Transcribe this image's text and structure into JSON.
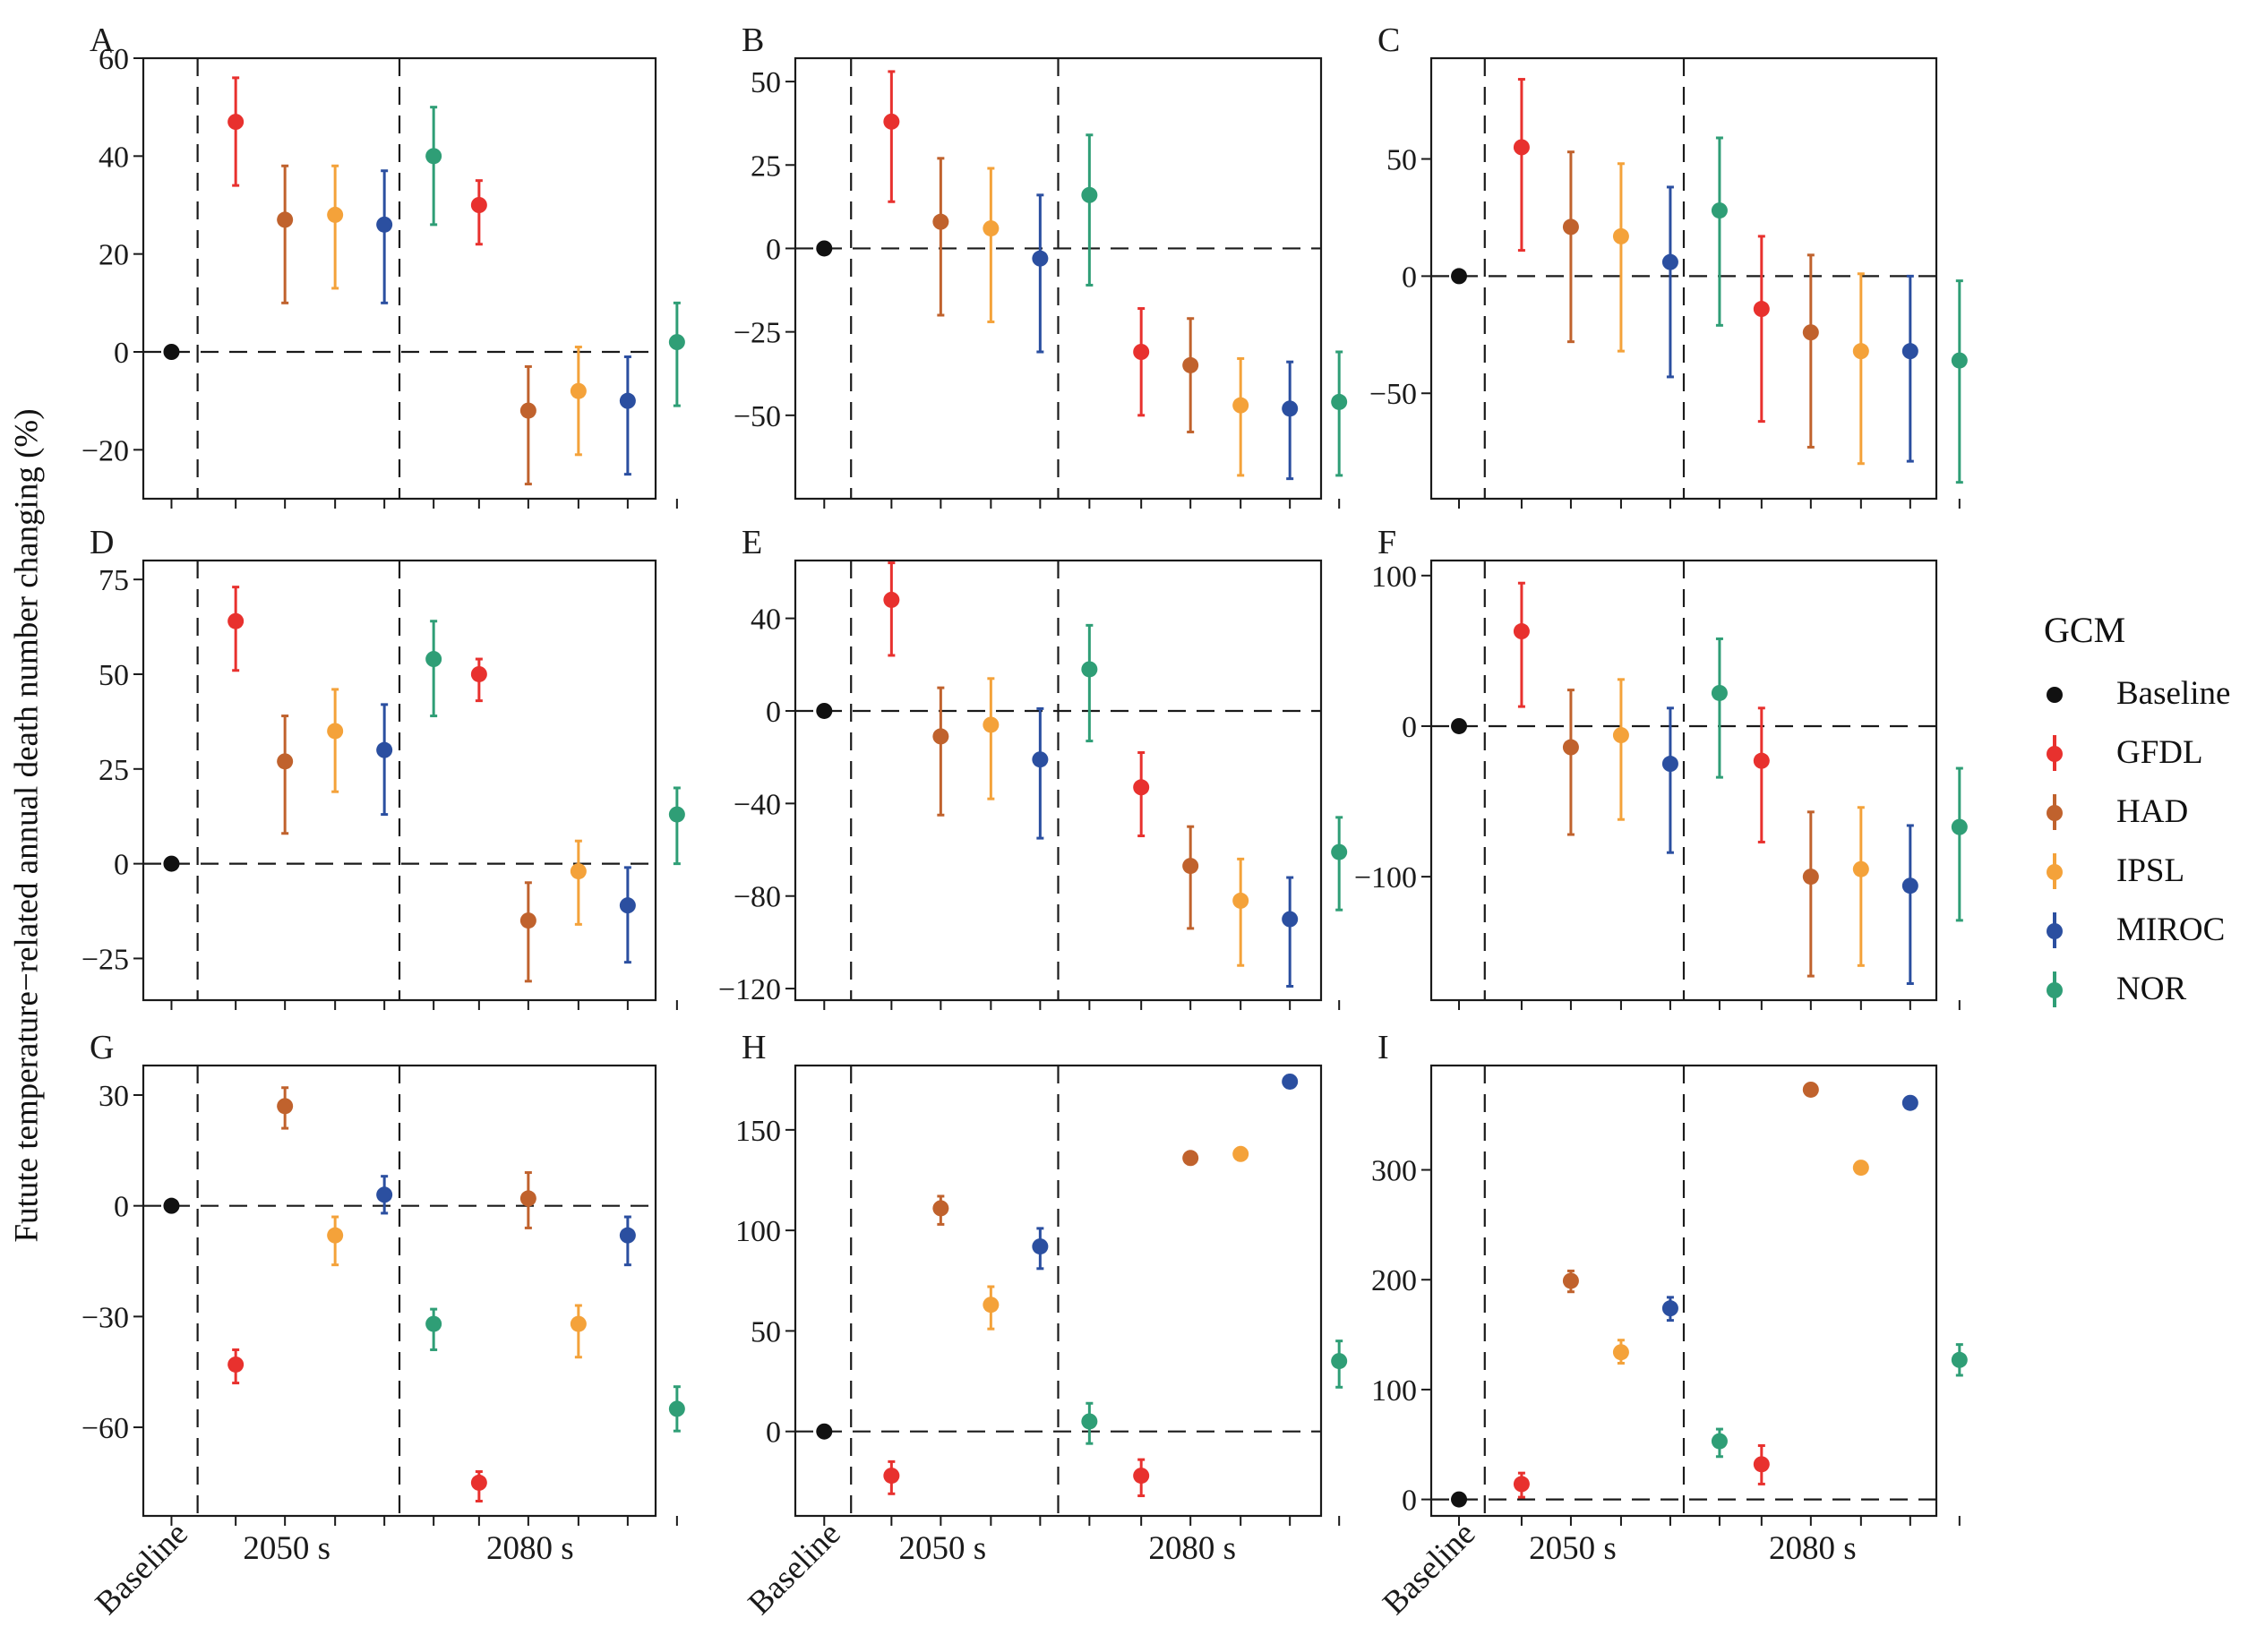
{
  "y_axis_label": "Futute temperature−related annual death number changing (%)",
  "legend": {
    "title": "GCM",
    "items": [
      {
        "label": "Baseline",
        "color": "#111111"
      },
      {
        "label": "GFDL",
        "color": "#e8312e"
      },
      {
        "label": "HAD",
        "color": "#c0622d"
      },
      {
        "label": "IPSL",
        "color": "#f4a23a"
      },
      {
        "label": "MIROC",
        "color": "#2b4fa0"
      },
      {
        "label": "NOR",
        "color": "#2f9e76"
      }
    ]
  },
  "x_tick_labels": [
    "Baseline",
    "2050 s",
    "2080 s"
  ],
  "chart_data": [
    {
      "panel": "A",
      "type": "scatter",
      "ylim": [
        -30,
        60
      ],
      "yticks": [
        -20,
        0,
        20,
        40,
        60
      ],
      "series": [
        {
          "name": "Baseline",
          "period": "Baseline",
          "y": 0,
          "lo": 0,
          "hi": 0
        },
        {
          "name": "GFDL",
          "period": "2050 s",
          "y": 47,
          "lo": 34,
          "hi": 56
        },
        {
          "name": "HAD",
          "period": "2050 s",
          "y": 27,
          "lo": 10,
          "hi": 38
        },
        {
          "name": "IPSL",
          "period": "2050 s",
          "y": 28,
          "lo": 13,
          "hi": 38
        },
        {
          "name": "MIROC",
          "period": "2050 s",
          "y": 26,
          "lo": 10,
          "hi": 37
        },
        {
          "name": "NOR",
          "period": "2050 s",
          "y": 40,
          "lo": 26,
          "hi": 50
        },
        {
          "name": "GFDL",
          "period": "2080 s",
          "y": 30,
          "lo": 22,
          "hi": 35
        },
        {
          "name": "HAD",
          "period": "2080 s",
          "y": -12,
          "lo": -27,
          "hi": -3
        },
        {
          "name": "IPSL",
          "period": "2080 s",
          "y": -8,
          "lo": -21,
          "hi": 1
        },
        {
          "name": "MIROC",
          "period": "2080 s",
          "y": -10,
          "lo": -25,
          "hi": -1
        },
        {
          "name": "NOR",
          "period": "2080 s",
          "y": 2,
          "lo": -11,
          "hi": 10
        }
      ]
    },
    {
      "panel": "B",
      "type": "scatter",
      "ylim": [
        -75,
        57
      ],
      "yticks": [
        -50,
        -25,
        0,
        25,
        50
      ],
      "series": [
        {
          "name": "Baseline",
          "period": "Baseline",
          "y": 0,
          "lo": 0,
          "hi": 0
        },
        {
          "name": "GFDL",
          "period": "2050 s",
          "y": 38,
          "lo": 14,
          "hi": 53
        },
        {
          "name": "HAD",
          "period": "2050 s",
          "y": 8,
          "lo": -20,
          "hi": 27
        },
        {
          "name": "IPSL",
          "period": "2050 s",
          "y": 6,
          "lo": -22,
          "hi": 24
        },
        {
          "name": "MIROC",
          "period": "2050 s",
          "y": -3,
          "lo": -31,
          "hi": 16
        },
        {
          "name": "NOR",
          "period": "2050 s",
          "y": 16,
          "lo": -11,
          "hi": 34
        },
        {
          "name": "GFDL",
          "period": "2080 s",
          "y": -31,
          "lo": -50,
          "hi": -18
        },
        {
          "name": "HAD",
          "period": "2080 s",
          "y": -35,
          "lo": -55,
          "hi": -21
        },
        {
          "name": "IPSL",
          "period": "2080 s",
          "y": -47,
          "lo": -68,
          "hi": -33
        },
        {
          "name": "MIROC",
          "period": "2080 s",
          "y": -48,
          "lo": -69,
          "hi": -34
        },
        {
          "name": "NOR",
          "period": "2080 s",
          "y": -46,
          "lo": -68,
          "hi": -31
        }
      ]
    },
    {
      "panel": "C",
      "type": "scatter",
      "ylim": [
        -95,
        93
      ],
      "yticks": [
        -50,
        0,
        50
      ],
      "series": [
        {
          "name": "Baseline",
          "period": "Baseline",
          "y": 0,
          "lo": 0,
          "hi": 0
        },
        {
          "name": "GFDL",
          "period": "2050 s",
          "y": 55,
          "lo": 11,
          "hi": 84
        },
        {
          "name": "HAD",
          "period": "2050 s",
          "y": 21,
          "lo": -28,
          "hi": 53
        },
        {
          "name": "IPSL",
          "period": "2050 s",
          "y": 17,
          "lo": -32,
          "hi": 48
        },
        {
          "name": "MIROC",
          "period": "2050 s",
          "y": 6,
          "lo": -43,
          "hi": 38
        },
        {
          "name": "NOR",
          "period": "2050 s",
          "y": 28,
          "lo": -21,
          "hi": 59
        },
        {
          "name": "GFDL",
          "period": "2080 s",
          "y": -14,
          "lo": -62,
          "hi": 17
        },
        {
          "name": "HAD",
          "period": "2080 s",
          "y": -24,
          "lo": -73,
          "hi": 9
        },
        {
          "name": "IPSL",
          "period": "2080 s",
          "y": -32,
          "lo": -80,
          "hi": 1
        },
        {
          "name": "MIROC",
          "period": "2080 s",
          "y": -32,
          "lo": -79,
          "hi": 0
        },
        {
          "name": "NOR",
          "period": "2080 s",
          "y": -36,
          "lo": -88,
          "hi": -2
        }
      ]
    },
    {
      "panel": "D",
      "type": "scatter",
      "ylim": [
        -36,
        80
      ],
      "yticks": [
        -25,
        0,
        25,
        50,
        75
      ],
      "series": [
        {
          "name": "Baseline",
          "period": "Baseline",
          "y": 0,
          "lo": 0,
          "hi": 0
        },
        {
          "name": "GFDL",
          "period": "2050 s",
          "y": 64,
          "lo": 51,
          "hi": 73
        },
        {
          "name": "HAD",
          "period": "2050 s",
          "y": 27,
          "lo": 8,
          "hi": 39
        },
        {
          "name": "IPSL",
          "period": "2050 s",
          "y": 35,
          "lo": 19,
          "hi": 46
        },
        {
          "name": "MIROC",
          "period": "2050 s",
          "y": 30,
          "lo": 13,
          "hi": 42
        },
        {
          "name": "NOR",
          "period": "2050 s",
          "y": 54,
          "lo": 39,
          "hi": 64
        },
        {
          "name": "GFDL",
          "period": "2080 s",
          "y": 50,
          "lo": 43,
          "hi": 54
        },
        {
          "name": "HAD",
          "period": "2080 s",
          "y": -15,
          "lo": -31,
          "hi": -5
        },
        {
          "name": "IPSL",
          "period": "2080 s",
          "y": -2,
          "lo": -16,
          "hi": 6
        },
        {
          "name": "MIROC",
          "period": "2080 s",
          "y": -11,
          "lo": -26,
          "hi": -1
        },
        {
          "name": "NOR",
          "period": "2080 s",
          "y": 13,
          "lo": 0,
          "hi": 20
        }
      ]
    },
    {
      "panel": "E",
      "type": "scatter",
      "ylim": [
        -125,
        65
      ],
      "yticks": [
        -120,
        -80,
        -40,
        0,
        40
      ],
      "series": [
        {
          "name": "Baseline",
          "period": "Baseline",
          "y": 0,
          "lo": 0,
          "hi": 0
        },
        {
          "name": "GFDL",
          "period": "2050 s",
          "y": 48,
          "lo": 24,
          "hi": 64
        },
        {
          "name": "HAD",
          "period": "2050 s",
          "y": -11,
          "lo": -45,
          "hi": 10
        },
        {
          "name": "IPSL",
          "period": "2050 s",
          "y": -6,
          "lo": -38,
          "hi": 14
        },
        {
          "name": "MIROC",
          "period": "2050 s",
          "y": -21,
          "lo": -55,
          "hi": 1
        },
        {
          "name": "NOR",
          "period": "2050 s",
          "y": 18,
          "lo": -13,
          "hi": 37
        },
        {
          "name": "GFDL",
          "period": "2080 s",
          "y": -33,
          "lo": -54,
          "hi": -18
        },
        {
          "name": "HAD",
          "period": "2080 s",
          "y": -67,
          "lo": -94,
          "hi": -50
        },
        {
          "name": "IPSL",
          "period": "2080 s",
          "y": -82,
          "lo": -110,
          "hi": -64
        },
        {
          "name": "MIROC",
          "period": "2080 s",
          "y": -90,
          "lo": -119,
          "hi": -72
        },
        {
          "name": "NOR",
          "period": "2080 s",
          "y": -61,
          "lo": -86,
          "hi": -46
        }
      ]
    },
    {
      "panel": "F",
      "type": "scatter",
      "ylim": [
        -182,
        110
      ],
      "yticks": [
        -100,
        0,
        100
      ],
      "series": [
        {
          "name": "Baseline",
          "period": "Baseline",
          "y": 0,
          "lo": 0,
          "hi": 0
        },
        {
          "name": "GFDL",
          "period": "2050 s",
          "y": 63,
          "lo": 13,
          "hi": 95
        },
        {
          "name": "HAD",
          "period": "2050 s",
          "y": -14,
          "lo": -72,
          "hi": 24
        },
        {
          "name": "IPSL",
          "period": "2050 s",
          "y": -6,
          "lo": -62,
          "hi": 31
        },
        {
          "name": "MIROC",
          "period": "2050 s",
          "y": -25,
          "lo": -84,
          "hi": 12
        },
        {
          "name": "NOR",
          "period": "2050 s",
          "y": 22,
          "lo": -34,
          "hi": 58
        },
        {
          "name": "GFDL",
          "period": "2080 s",
          "y": -23,
          "lo": -77,
          "hi": 12
        },
        {
          "name": "HAD",
          "period": "2080 s",
          "y": -100,
          "lo": -166,
          "hi": -57
        },
        {
          "name": "IPSL",
          "period": "2080 s",
          "y": -95,
          "lo": -159,
          "hi": -54
        },
        {
          "name": "MIROC",
          "period": "2080 s",
          "y": -106,
          "lo": -171,
          "hi": -66
        },
        {
          "name": "NOR",
          "period": "2080 s",
          "y": -67,
          "lo": -129,
          "hi": -28
        }
      ]
    },
    {
      "panel": "G",
      "type": "scatter",
      "ylim": [
        -84,
        38
      ],
      "yticks": [
        -60,
        -30,
        0,
        30
      ],
      "series": [
        {
          "name": "Baseline",
          "period": "Baseline",
          "y": 0,
          "lo": 0,
          "hi": 0
        },
        {
          "name": "GFDL",
          "period": "2050 s",
          "y": -43,
          "lo": -48,
          "hi": -39
        },
        {
          "name": "HAD",
          "period": "2050 s",
          "y": 27,
          "lo": 21,
          "hi": 32
        },
        {
          "name": "IPSL",
          "period": "2050 s",
          "y": -8,
          "lo": -16,
          "hi": -3
        },
        {
          "name": "MIROC",
          "period": "2050 s",
          "y": 3,
          "lo": -2,
          "hi": 8
        },
        {
          "name": "NOR",
          "period": "2050 s",
          "y": -32,
          "lo": -39,
          "hi": -28
        },
        {
          "name": "GFDL",
          "period": "2080 s",
          "y": -75,
          "lo": -80,
          "hi": -72
        },
        {
          "name": "HAD",
          "period": "2080 s",
          "y": 2,
          "lo": -6,
          "hi": 9
        },
        {
          "name": "IPSL",
          "period": "2080 s",
          "y": -32,
          "lo": -41,
          "hi": -27
        },
        {
          "name": "MIROC",
          "period": "2080 s",
          "y": -8,
          "lo": -16,
          "hi": -3
        },
        {
          "name": "NOR",
          "period": "2080 s",
          "y": -55,
          "lo": -61,
          "hi": -49
        }
      ]
    },
    {
      "panel": "H",
      "type": "scatter",
      "ylim": [
        -42,
        182
      ],
      "yticks": [
        0,
        50,
        100,
        150
      ],
      "series": [
        {
          "name": "Baseline",
          "period": "Baseline",
          "y": 0,
          "lo": 0,
          "hi": 0
        },
        {
          "name": "GFDL",
          "period": "2050 s",
          "y": -22,
          "lo": -31,
          "hi": -15
        },
        {
          "name": "HAD",
          "period": "2050 s",
          "y": 111,
          "lo": 103,
          "hi": 117
        },
        {
          "name": "IPSL",
          "period": "2050 s",
          "y": 63,
          "lo": 51,
          "hi": 72
        },
        {
          "name": "MIROC",
          "period": "2050 s",
          "y": 92,
          "lo": 81,
          "hi": 101
        },
        {
          "name": "NOR",
          "period": "2050 s",
          "y": 5,
          "lo": -6,
          "hi": 14
        },
        {
          "name": "GFDL",
          "period": "2080 s",
          "y": -22,
          "lo": -32,
          "hi": -14
        },
        {
          "name": "HAD",
          "period": "2080 s",
          "y": 136,
          "lo": 133,
          "hi": 139
        },
        {
          "name": "IPSL",
          "period": "2080 s",
          "y": 138,
          "lo": 135,
          "hi": 141
        },
        {
          "name": "MIROC",
          "period": "2080 s",
          "y": 174,
          "lo": 171,
          "hi": 177
        },
        {
          "name": "NOR",
          "period": "2080 s",
          "y": 35,
          "lo": 22,
          "hi": 45
        }
      ]
    },
    {
      "panel": "I",
      "type": "scatter",
      "ylim": [
        -15,
        395
      ],
      "yticks": [
        0,
        100,
        200,
        300
      ],
      "series": [
        {
          "name": "Baseline",
          "period": "Baseline",
          "y": 0,
          "lo": 0,
          "hi": 0
        },
        {
          "name": "GFDL",
          "period": "2050 s",
          "y": 14,
          "lo": 2,
          "hi": 24
        },
        {
          "name": "HAD",
          "period": "2050 s",
          "y": 199,
          "lo": 189,
          "hi": 208
        },
        {
          "name": "IPSL",
          "period": "2050 s",
          "y": 134,
          "lo": 124,
          "hi": 145
        },
        {
          "name": "MIROC",
          "period": "2050 s",
          "y": 174,
          "lo": 163,
          "hi": 184
        },
        {
          "name": "NOR",
          "period": "2050 s",
          "y": 53,
          "lo": 39,
          "hi": 64
        },
        {
          "name": "GFDL",
          "period": "2080 s",
          "y": 32,
          "lo": 14,
          "hi": 49
        },
        {
          "name": "HAD",
          "period": "2080 s",
          "y": 373,
          "lo": 370,
          "hi": 376
        },
        {
          "name": "IPSL",
          "period": "2080 s",
          "y": 302,
          "lo": 299,
          "hi": 305
        },
        {
          "name": "MIROC",
          "period": "2080 s",
          "y": 361,
          "lo": 358,
          "hi": 364
        },
        {
          "name": "NOR",
          "period": "2080 s",
          "y": 127,
          "lo": 113,
          "hi": 141
        }
      ]
    }
  ]
}
